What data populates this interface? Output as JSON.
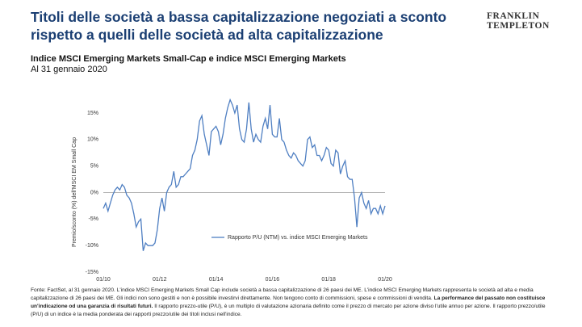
{
  "header": {
    "title": "Titoli delle società a bassa capitalizzazione negoziati a sconto rispetto a quelli delle società ad alta capitalizzazione",
    "logo": [
      "FRANKLIN",
      "TEMPLETON"
    ]
  },
  "chart_data": {
    "type": "line",
    "title": "Indice MSCI Emerging Markets Small-Cap e indice MSCI Emerging Markets",
    "subtitle": "Al 31 gennaio 2020",
    "y_label": "Premio/sconto (%) dell'MSCI EM Small Cap",
    "x": [
      "01/10",
      "02/10",
      "03/10",
      "04/10",
      "05/10",
      "06/10",
      "07/10",
      "08/10",
      "09/10",
      "10/10",
      "11/10",
      "12/10",
      "01/11",
      "02/11",
      "03/11",
      "04/11",
      "05/11",
      "06/11",
      "07/11",
      "08/11",
      "09/11",
      "10/11",
      "11/11",
      "12/11",
      "01/12",
      "02/12",
      "03/12",
      "04/12",
      "05/12",
      "06/12",
      "07/12",
      "08/12",
      "09/12",
      "10/12",
      "11/12",
      "12/12",
      "01/13",
      "02/13",
      "03/13",
      "04/13",
      "05/13",
      "06/13",
      "07/13",
      "08/13",
      "09/13",
      "10/13",
      "11/13",
      "12/13",
      "01/14",
      "02/14",
      "03/14",
      "04/14",
      "05/14",
      "06/14",
      "07/14",
      "08/14",
      "09/14",
      "10/14",
      "11/14",
      "12/14",
      "01/15",
      "02/15",
      "03/15",
      "04/15",
      "05/15",
      "06/15",
      "07/15",
      "08/15",
      "09/15",
      "10/15",
      "11/15",
      "12/15",
      "01/16",
      "02/16",
      "03/16",
      "04/16",
      "05/16",
      "06/16",
      "07/16",
      "08/16",
      "09/16",
      "10/16",
      "11/16",
      "12/16",
      "01/17",
      "02/17",
      "03/17",
      "04/17",
      "05/17",
      "06/17",
      "07/17",
      "08/17",
      "09/17",
      "10/17",
      "11/17",
      "12/17",
      "01/18",
      "02/18",
      "03/18",
      "04/18",
      "05/18",
      "06/18",
      "07/18",
      "08/18",
      "09/18",
      "10/18",
      "11/18",
      "12/18",
      "01/19",
      "02/19",
      "03/19",
      "04/19",
      "05/19",
      "06/19",
      "07/19",
      "08/19",
      "09/19",
      "10/19",
      "11/19",
      "12/19",
      "01/20"
    ],
    "series": [
      {
        "name": "Rapporto P/U (NTM) vs. indice MSCI Emerging Markets",
        "color": "#4f7fc2",
        "values": [
          -3,
          -2,
          -3.5,
          -2,
          -0.5,
          0.5,
          1,
          0.5,
          1.5,
          1,
          -0.5,
          -1,
          -2,
          -4,
          -6.5,
          -5.5,
          -5,
          -11,
          -9.5,
          -10,
          -10,
          -10,
          -9.5,
          -7,
          -3,
          -1,
          -3.5,
          0,
          1,
          1.5,
          4,
          1,
          1.5,
          3,
          3,
          3.5,
          4,
          4.5,
          7,
          8,
          10,
          13.5,
          14.5,
          11,
          9,
          7,
          11.5,
          12,
          12.5,
          11.5,
          9,
          11,
          14,
          16,
          17.5,
          16.5,
          15,
          16.5,
          12,
          10,
          9.5,
          12,
          17,
          12,
          9.5,
          11,
          10,
          9.5,
          12.5,
          14,
          12,
          16.5,
          11,
          10.5,
          10.5,
          14,
          10,
          9.5,
          8,
          7,
          6.5,
          7.5,
          7,
          6,
          5.5,
          5,
          6,
          10,
          10.5,
          8.5,
          9,
          7,
          7,
          6,
          7,
          8.5,
          8,
          5.5,
          5,
          8,
          7.5,
          3.5,
          5,
          6,
          3,
          2.5,
          2.5,
          -1,
          -6.5,
          -1,
          0,
          -2,
          -3,
          -1.5,
          -4,
          -3,
          -3,
          -4,
          -2.5,
          -4,
          -2.5
        ]
      }
    ],
    "xticks": [
      "01/10",
      "01/12",
      "01/14",
      "01/16",
      "01/18",
      "01/20"
    ],
    "ylim": [
      -15,
      15
    ],
    "yticks": [
      {
        "value": -15,
        "label": "-15%"
      },
      {
        "value": -10,
        "label": "-10%"
      },
      {
        "value": -5,
        "label": "-5%"
      },
      {
        "value": 0,
        "label": "0%"
      },
      {
        "value": 5,
        "label": "5%"
      },
      {
        "value": 10,
        "label": "10%"
      },
      {
        "value": 15,
        "label": "15%"
      }
    ],
    "zero_line": true,
    "grid": false,
    "legend": "lower center"
  },
  "footnote": {
    "text1": "Fonte: FactSet, al 31 gennaio 2020. L'indice MSCI Emerging Markets Small Cap include società a bassa capitalizzazione di 26 paesi dei ME. L'indice MSCI Emerging Markets rappresenta le società ad alta e media capitalizzazione di 26 paesi dei ME. Gli indici non sono gestiti e non è possibile investirvi direttamente. Non tengono conto di commissioni, spese e commissioni di vendita. ",
    "bold": "La performance del passato non costituisce un'indicazione od una garanzia di risultati futuri.",
    "text2": " Il rapporto prezzo-utile (P/U), è un multiplo di valutazione azionaria definito come il prezzo di mercato per azione diviso l'utile annuo per azione. Il rapporto prezzo/utile (P/U) di un indice è la media ponderata dei rapporti prezzo/utile dei titoli inclusi nell'indice."
  }
}
